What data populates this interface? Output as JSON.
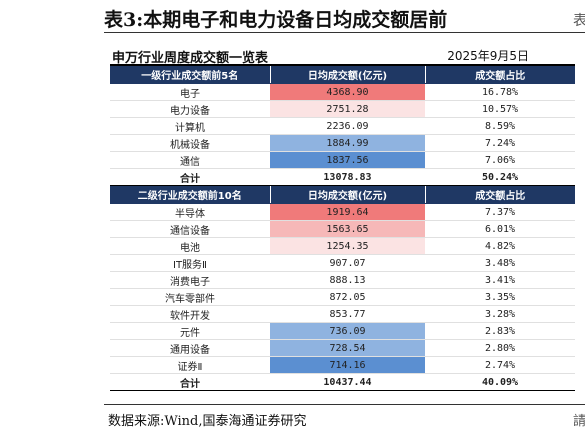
{
  "title": "表3:本期电子和电力设备日均成交额居前",
  "subtitle": "申万行业周度成交额一览表",
  "date": "2025年9月5日",
  "edge_mark": "表",
  "source": "数据来源:Wind,国泰海通证券研究",
  "source_edge": "請",
  "colors": {
    "header_bg": "#1f3864",
    "header_text": "#ffffff",
    "high_strong": "#f07a7a",
    "high_mid": "#f6b8b8",
    "high_light": "#fbe3e3",
    "low_light": "#c5d7ee",
    "low_mid": "#8fb3e0",
    "low_strong": "#5b8fd1"
  },
  "section1": {
    "headers": [
      "一级行业成交额前5名",
      "日均成交额(亿元)",
      "成交额占比"
    ],
    "rows": [
      {
        "name": "电子",
        "value": "4368.90",
        "share": "16.78%",
        "shade": "high_strong"
      },
      {
        "name": "电力设备",
        "value": "2751.28",
        "share": "10.57%",
        "shade": "high_light"
      },
      {
        "name": "计算机",
        "value": "2236.09",
        "share": "8.59%",
        "shade": ""
      },
      {
        "name": "机械设备",
        "value": "1884.99",
        "share": "7.24%",
        "shade": "low_mid"
      },
      {
        "name": "通信",
        "value": "1837.56",
        "share": "7.06%",
        "shade": "low_strong"
      }
    ],
    "total": {
      "name": "合计",
      "value": "13078.83",
      "share": "50.24%"
    }
  },
  "section2": {
    "headers": [
      "二级行业成交额前10名",
      "日均成交额(亿元)",
      "成交额占比"
    ],
    "rows": [
      {
        "name": "半导体",
        "value": "1919.64",
        "share": "7.37%",
        "shade": "high_strong"
      },
      {
        "name": "通信设备",
        "value": "1563.65",
        "share": "6.01%",
        "shade": "high_mid"
      },
      {
        "name": "电池",
        "value": "1254.35",
        "share": "4.82%",
        "shade": "high_light"
      },
      {
        "name": "IT服务Ⅱ",
        "value": "907.07",
        "share": "3.48%",
        "shade": ""
      },
      {
        "name": "消费电子",
        "value": "888.13",
        "share": "3.41%",
        "shade": ""
      },
      {
        "name": "汽车零部件",
        "value": "872.05",
        "share": "3.35%",
        "shade": ""
      },
      {
        "name": "软件开发",
        "value": "853.77",
        "share": "3.28%",
        "shade": ""
      },
      {
        "name": "元件",
        "value": "736.09",
        "share": "2.83%",
        "shade": "low_mid"
      },
      {
        "name": "通用设备",
        "value": "728.54",
        "share": "2.80%",
        "shade": "low_mid"
      },
      {
        "name": "证券Ⅱ",
        "value": "714.16",
        "share": "2.74%",
        "shade": "low_strong"
      }
    ],
    "total": {
      "name": "合计",
      "value": "10437.44",
      "share": "40.09%"
    }
  }
}
